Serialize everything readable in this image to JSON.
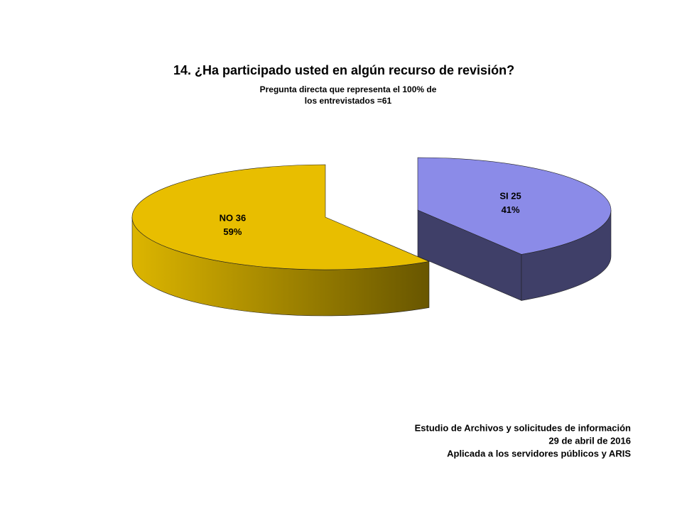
{
  "chart_data": {
    "type": "pie",
    "title": "14. ¿Ha participado usted en algún recurso de revisión?",
    "subtitle": [
      "Pregunta directa que representa el 100% de",
      "los entrevistados  =61"
    ],
    "categories": [
      "SI",
      "NO"
    ],
    "values": [
      25,
      36
    ],
    "percentages": [
      {
        "value": 41,
        "label": "41%"
      },
      {
        "value": 59,
        "label": "59%"
      }
    ],
    "colors": [
      "#8b8be8",
      "#e8be00"
    ],
    "footer": [
      "Estudio de Archivos y solicitudes de información",
      "29 de abril de 2016",
      "Aplicada a los servidores públicos y ARIS"
    ]
  }
}
